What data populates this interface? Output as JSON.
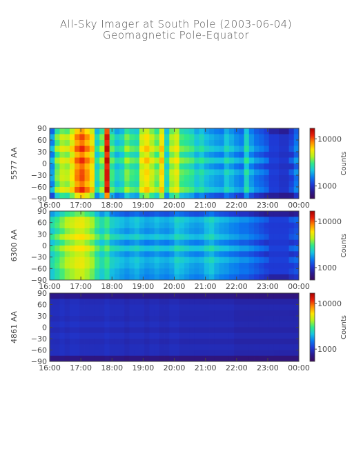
{
  "title": "All-Sky Imager at South Pole (2003-06-04)",
  "subtitle": "Geomagnetic Pole-Equator",
  "colors": {
    "axis": "#444444",
    "colormap": [
      "#3b0a5a",
      "#2a1a8f",
      "#1e3ad6",
      "#0a78f0",
      "#16c4e0",
      "#2ee88a",
      "#b4f21c",
      "#ffe400",
      "#ff8a00",
      "#e81e0a",
      "#a80000"
    ]
  },
  "chart_data": [
    {
      "type": "heatmap",
      "ylabel": "5577 AA",
      "x_ticks": [
        "16:00",
        "17:00",
        "18:00",
        "19:00",
        "20:00",
        "21:00",
        "22:00",
        "23:00",
        "00:00"
      ],
      "y_ticks": [
        "90",
        "60",
        "30",
        "0",
        "−30",
        "−60",
        "−90"
      ],
      "ylim": [
        -90,
        90
      ],
      "colorbar": {
        "label": "Counts",
        "ticks": [
          "10000",
          "1000"
        ]
      },
      "intensity_profile": [
        0.35,
        0.55,
        0.62,
        0.6,
        0.68,
        0.8,
        0.85,
        0.78,
        0.7,
        0.45,
        0.55,
        0.92,
        0.5,
        0.42,
        0.45,
        0.55,
        0.5,
        0.48,
        0.65,
        0.7,
        0.62,
        0.55,
        0.7,
        0.45,
        0.6,
        0.65,
        0.52,
        0.5,
        0.48,
        0.42,
        0.45,
        0.4,
        0.38,
        0.36,
        0.35,
        0.42,
        0.38,
        0.34,
        0.32,
        0.45,
        0.35,
        0.3,
        0.28,
        0.25,
        0.2,
        0.2,
        0.18,
        0.18,
        0.22,
        0.3
      ]
    },
    {
      "type": "heatmap",
      "ylabel": "6300 AA",
      "x_ticks": [
        "16:00",
        "17:00",
        "18:00",
        "19:00",
        "20:00",
        "21:00",
        "22:00",
        "23:00",
        "00:00"
      ],
      "y_ticks": [
        "90",
        "60",
        "30",
        "0",
        "−30",
        "−60",
        "−90"
      ],
      "ylim": [
        -90,
        90
      ],
      "colorbar": {
        "label": "Counts",
        "ticks": [
          "10000",
          "1000"
        ]
      },
      "intensity_profile": [
        0.45,
        0.5,
        0.55,
        0.6,
        0.62,
        0.65,
        0.66,
        0.62,
        0.58,
        0.5,
        0.45,
        0.5,
        0.42,
        0.4,
        0.38,
        0.36,
        0.38,
        0.4,
        0.37,
        0.35,
        0.36,
        0.38,
        0.36,
        0.35,
        0.37,
        0.42,
        0.4,
        0.38,
        0.36,
        0.35,
        0.36,
        0.4,
        0.42,
        0.38,
        0.36,
        0.35,
        0.33,
        0.32,
        0.3,
        0.3,
        0.28,
        0.26,
        0.24,
        0.22,
        0.2,
        0.2,
        0.2,
        0.2,
        0.22,
        0.24
      ]
    },
    {
      "type": "heatmap",
      "ylabel": "4861 AA",
      "x_ticks": [
        "16:00",
        "17:00",
        "18:00",
        "19:00",
        "20:00",
        "21:00",
        "22:00",
        "23:00",
        "00:00"
      ],
      "y_ticks": [
        "90",
        "60",
        "30",
        "0",
        "−30",
        "−60",
        "−90"
      ],
      "ylim": [
        -90,
        90
      ],
      "colorbar": {
        "label": "Counts",
        "ticks": [
          "10000",
          "1000"
        ]
      },
      "intensity_profile": [
        0.16,
        0.16,
        0.17,
        0.16,
        0.17,
        0.17,
        0.16,
        0.16,
        0.16,
        0.16,
        0.16,
        0.17,
        0.16,
        0.16,
        0.16,
        0.15,
        0.16,
        0.16,
        0.16,
        0.15,
        0.16,
        0.16,
        0.15,
        0.15,
        0.16,
        0.16,
        0.15,
        0.15,
        0.15,
        0.15,
        0.15,
        0.15,
        0.15,
        0.15,
        0.15,
        0.15,
        0.15,
        0.14,
        0.14,
        0.14,
        0.14,
        0.14,
        0.14,
        0.14,
        0.14,
        0.14,
        0.14,
        0.14,
        0.14,
        0.14
      ]
    }
  ]
}
